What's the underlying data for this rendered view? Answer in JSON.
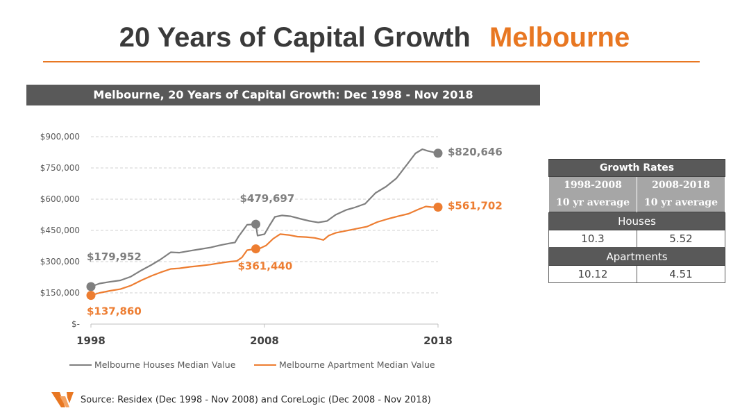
{
  "slide": {
    "title_main": "20 Years of Capital Growth",
    "title_accent": "Melbourne",
    "accent_color": "#E87722"
  },
  "chart_data": {
    "type": "line",
    "title": "Melbourne, 20 Years of Capital Growth: Dec 1998 - Nov 2018",
    "xlabel": "",
    "ylabel": "",
    "xlim": [
      1998.9,
      2018.9
    ],
    "ylim": [
      0,
      900000
    ],
    "x_ticks": [
      "1998",
      "2008",
      "2018"
    ],
    "y_ticks": [
      "$-",
      "$150,000",
      "$300,000",
      "$450,000",
      "$600,000",
      "$750,000",
      "$900,000"
    ],
    "grid": "horizontal dashed",
    "legend_position": "bottom",
    "series": [
      {
        "name": "Melbourne Houses Median Value",
        "color": "#7f7f7f",
        "x": [
          1998.9,
          1999.4,
          2000.0,
          2000.6,
          2001.2,
          2001.8,
          2002.4,
          2002.9,
          2003.5,
          2004.0,
          2004.6,
          2005.2,
          2005.8,
          2006.3,
          2006.9,
          2007.2,
          2007.4,
          2007.9,
          2008.4,
          2008.5,
          2008.9,
          2009.2,
          2009.5,
          2009.9,
          2010.4,
          2011.0,
          2011.5,
          2012.0,
          2012.5,
          2013.0,
          2013.6,
          2014.1,
          2014.7,
          2015.3,
          2015.9,
          2016.5,
          2017.1,
          2017.6,
          2018.0,
          2018.3,
          2018.9
        ],
        "y": [
          179952,
          195000,
          203000,
          210000,
          228000,
          258000,
          285000,
          310000,
          345000,
          343000,
          352000,
          360000,
          368000,
          378000,
          388000,
          392000,
          420000,
          477000,
          479697,
          425000,
          432000,
          475000,
          515000,
          522000,
          518000,
          505000,
          495000,
          488000,
          495000,
          525000,
          548000,
          560000,
          578000,
          630000,
          660000,
          700000,
          765000,
          820000,
          840000,
          832000,
          820646
        ],
        "labels": [
          {
            "x": 1998.9,
            "y": 179952,
            "text": "$179,952",
            "position": "above-right"
          },
          {
            "x": 2008.4,
            "y": 479697,
            "text": "$479,697",
            "position": "above"
          },
          {
            "x": 2018.9,
            "y": 820646,
            "text": "$820,646",
            "position": "right"
          }
        ]
      },
      {
        "name": "Melbourne Apartment Median Value",
        "color": "#ED7D31",
        "x": [
          1998.9,
          1999.4,
          2000.0,
          2000.6,
          2001.2,
          2001.8,
          2002.4,
          2002.9,
          2003.5,
          2004.0,
          2004.6,
          2005.2,
          2005.8,
          2006.3,
          2006.9,
          2007.3,
          2007.6,
          2007.9,
          2008.4,
          2008.6,
          2009.0,
          2009.4,
          2009.8,
          2010.3,
          2010.8,
          2011.3,
          2011.8,
          2012.3,
          2012.6,
          2013.0,
          2013.6,
          2014.2,
          2014.8,
          2015.4,
          2016.0,
          2016.6,
          2017.2,
          2017.8,
          2018.2,
          2018.5,
          2018.9
        ],
        "y": [
          137860,
          150000,
          160000,
          168000,
          185000,
          210000,
          232000,
          248000,
          265000,
          268000,
          275000,
          280000,
          286000,
          293000,
          300000,
          303000,
          320000,
          355000,
          361440,
          362000,
          378000,
          410000,
          432000,
          428000,
          420000,
          418000,
          414000,
          404000,
          425000,
          438000,
          448000,
          458000,
          468000,
          490000,
          505000,
          518000,
          530000,
          552000,
          565000,
          562000,
          561702
        ],
        "labels": [
          {
            "x": 1998.9,
            "y": 137860,
            "text": "$137,860",
            "position": "below-right"
          },
          {
            "x": 2008.4,
            "y": 361440,
            "text": "$361,440",
            "position": "below"
          },
          {
            "x": 2018.9,
            "y": 561702,
            "text": "$561,702",
            "position": "right"
          }
        ]
      }
    ]
  },
  "growth_table": {
    "title": "Growth Rates",
    "col1_head_line1": "1998-2008",
    "col1_head_line2": "10 yr average",
    "col2_head_line1": "2008-2018",
    "col2_head_line2": "10 yr average",
    "houses_label": "Houses",
    "houses_col1": "10.3",
    "houses_col2": "5.52",
    "apartments_label": "Apartments",
    "apartments_col1": "10.12",
    "apartments_col2": "4.51"
  },
  "source": {
    "text": "Source: Residex (Dec 1998 - Nov 2008) and CoreLogic (Dec 2008 - Nov 2018)",
    "logo_icon": "orange-chevron-logo-icon"
  }
}
